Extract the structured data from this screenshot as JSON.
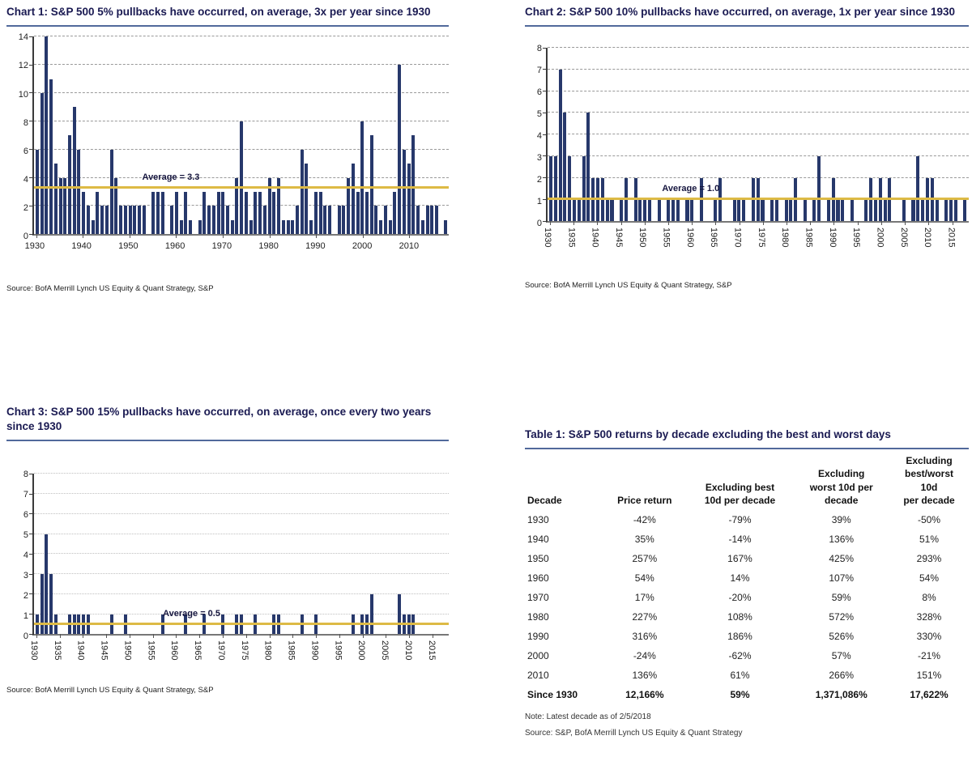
{
  "chart_data": [
    {
      "type": "bar",
      "title": "Chart 1: S&P 500 5% pullbacks have occurred, on average, 3x per year since 1930",
      "source": "Source: BofA Merrill Lynch US Equity & Quant Strategy, S&P",
      "x_range": [
        1930,
        2018
      ],
      "values": [
        6,
        10,
        14,
        11,
        5,
        4,
        4,
        7,
        9,
        6,
        3,
        2,
        1,
        3,
        2,
        2,
        6,
        4,
        2,
        2,
        2,
        2,
        2,
        2,
        0,
        3,
        3,
        3,
        0,
        2,
        3,
        1,
        3,
        1,
        0,
        1,
        3,
        2,
        2,
        3,
        3,
        2,
        1,
        4,
        8,
        3,
        1,
        3,
        3,
        2,
        4,
        3,
        4,
        1,
        1,
        1,
        2,
        6,
        5,
        1,
        3,
        3,
        2,
        2,
        0,
        2,
        2,
        4,
        5,
        3,
        8,
        3,
        7,
        2,
        1,
        2,
        1,
        3,
        12,
        6,
        5,
        7,
        2,
        1,
        2,
        2,
        2,
        0,
        1
      ],
      "ylim": [
        0,
        14
      ],
      "ytick_step": 2,
      "xticks": [
        1930,
        1940,
        1950,
        1960,
        1970,
        1980,
        1990,
        2000,
        2010
      ],
      "xtick_rotated": false,
      "grid_style": "dashed",
      "legend": "none",
      "average": {
        "label": "Average = 3.3",
        "value": 3.3,
        "label_x": 0.33
      }
    },
    {
      "type": "bar",
      "title": "Chart 2: S&P 500 10% pullbacks have occurred, on average, 1x per year since 1930",
      "source": "Source: BofA Merrill Lynch US Equity & Quant Strategy, S&P",
      "x_range": [
        1930,
        2018
      ],
      "values": [
        3,
        3,
        7,
        5,
        3,
        1,
        1,
        3,
        5,
        2,
        2,
        2,
        1,
        1,
        0,
        1,
        2,
        0,
        2,
        1,
        1,
        1,
        0,
        1,
        0,
        1,
        1,
        1,
        0,
        1,
        1,
        0,
        2,
        0,
        0,
        1,
        2,
        0,
        0,
        1,
        1,
        1,
        0,
        2,
        2,
        1,
        0,
        1,
        1,
        0,
        1,
        1,
        2,
        0,
        1,
        0,
        1,
        3,
        0,
        1,
        2,
        1,
        1,
        0,
        1,
        0,
        0,
        1,
        2,
        1,
        2,
        1,
        2,
        0,
        0,
        1,
        0,
        1,
        3,
        1,
        2,
        2,
        1,
        0,
        1,
        1,
        1,
        0,
        1
      ],
      "ylim": [
        0,
        8
      ],
      "ytick_step": 1,
      "xticks": [
        1930,
        1935,
        1940,
        1945,
        1950,
        1955,
        1960,
        1965,
        1970,
        1975,
        1980,
        1985,
        1990,
        1995,
        2000,
        2005,
        2010,
        2015
      ],
      "xtick_rotated": true,
      "grid_style": "dashed",
      "legend": "none",
      "average": {
        "label": "Average = 1.0",
        "value": 1.0,
        "label_x": 0.34
      }
    },
    {
      "type": "bar",
      "title": "Chart 3: S&P 500 15% pullbacks have occurred, on average, once every two years since 1930",
      "source": "Source: BofA Merrill Lynch US Equity & Quant Strategy, S&P",
      "x_range": [
        1930,
        2018
      ],
      "values": [
        1,
        3,
        5,
        3,
        1,
        0,
        0,
        1,
        1,
        1,
        1,
        1,
        0,
        0,
        0,
        0,
        1,
        0,
        0,
        1,
        0,
        0,
        0,
        0,
        0,
        0,
        0,
        1,
        0,
        0,
        0,
        0,
        1,
        0,
        0,
        0,
        1,
        0,
        0,
        0,
        1,
        0,
        0,
        1,
        1,
        0,
        0,
        1,
        0,
        0,
        0,
        1,
        1,
        0,
        0,
        0,
        0,
        1,
        0,
        0,
        1,
        0,
        0,
        0,
        0,
        0,
        0,
        0,
        1,
        0,
        1,
        1,
        2,
        0,
        0,
        0,
        0,
        0,
        2,
        1,
        1,
        1,
        0,
        0,
        0,
        0,
        0,
        0,
        0
      ],
      "ylim": [
        0,
        8
      ],
      "ytick_step": 1,
      "xticks": [
        1930,
        1935,
        1940,
        1945,
        1950,
        1955,
        1960,
        1965,
        1970,
        1975,
        1980,
        1985,
        1990,
        1995,
        2000,
        2005,
        2010,
        2015
      ],
      "xtick_rotated": true,
      "grid_style": "dotted",
      "legend": "none",
      "average": {
        "label": "Average = 0.5",
        "value": 0.5,
        "label_x": 0.38
      }
    },
    {
      "type": "table",
      "title": "Table 1: S&P 500 returns by decade excluding the best and worst days",
      "columns": [
        "Decade",
        "Price return",
        "Excluding best\n10d per decade",
        "Excluding\nworst 10d per\ndecade",
        "Excluding\nbest/worst\n10d\nper decade"
      ],
      "rows": [
        [
          "1930",
          "-42%",
          "-79%",
          "39%",
          "-50%"
        ],
        [
          "1940",
          "35%",
          "-14%",
          "136%",
          "51%"
        ],
        [
          "1950",
          "257%",
          "167%",
          "425%",
          "293%"
        ],
        [
          "1960",
          "54%",
          "14%",
          "107%",
          "54%"
        ],
        [
          "1970",
          "17%",
          "-20%",
          "59%",
          "8%"
        ],
        [
          "1980",
          "227%",
          "108%",
          "572%",
          "328%"
        ],
        [
          "1990",
          "316%",
          "186%",
          "526%",
          "330%"
        ],
        [
          "2000",
          "-24%",
          "-62%",
          "57%",
          "-21%"
        ],
        [
          "2010",
          "136%",
          "61%",
          "266%",
          "151%"
        ]
      ],
      "total_row": [
        "Since 1930",
        "12,166%",
        "59%",
        "1,371,086%",
        "17,622%"
      ],
      "note": "Note: Latest decade as of 2/5/2018",
      "source": "Source: S&P, BofA Merrill Lynch US Equity & Quant Strategy"
    }
  ],
  "colors": {
    "bar": "#27386b",
    "average_line": "#ddba45",
    "title_text": "#1a1a52",
    "title_underline": "#51699b",
    "gridline": "#999999"
  }
}
